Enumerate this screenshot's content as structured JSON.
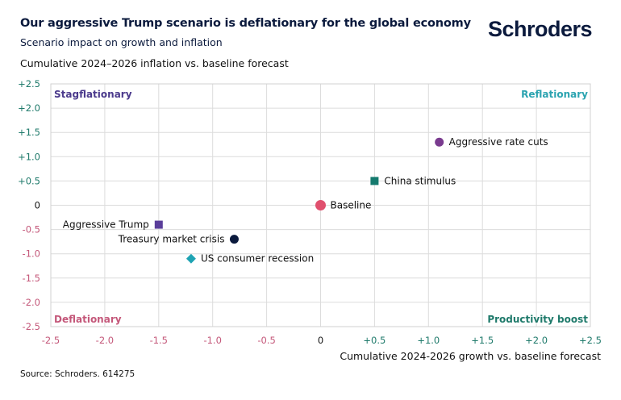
{
  "header": {
    "title": "Our aggressive Trump scenario is deflationary for the global economy",
    "subtitle": "Scenario impact on growth and inflation",
    "logo": "Schroders"
  },
  "footer": {
    "source": "Source: Schroders. 614275"
  },
  "chart_data": {
    "type": "scatter",
    "title": "Our aggressive Trump scenario is deflationary for the global economy",
    "subtitle": "Scenario impact on growth and inflation",
    "xlabel": "Cumulative 2024-2026 growth vs. baseline forecast",
    "ylabel": "Cumulative 2024–2026 inflation vs. baseline forecast",
    "xlim": [
      -2.5,
      2.5
    ],
    "ylim": [
      -2.5,
      2.5
    ],
    "grid": true,
    "x_ticks": [
      {
        "value": -2.5,
        "label": "-2.5"
      },
      {
        "value": -2.0,
        "label": "-2.0"
      },
      {
        "value": -1.5,
        "label": "-1.5"
      },
      {
        "value": -1.0,
        "label": "-1.0"
      },
      {
        "value": -0.5,
        "label": "-0.5"
      },
      {
        "value": 0,
        "label": "0"
      },
      {
        "value": 0.5,
        "label": "+0.5"
      },
      {
        "value": 1.0,
        "label": "+1.0"
      },
      {
        "value": 1.5,
        "label": "+1.5"
      },
      {
        "value": 2.0,
        "label": "+2.0"
      },
      {
        "value": 2.5,
        "label": "+2.5"
      }
    ],
    "y_ticks": [
      {
        "value": 2.5,
        "label": "+2.5"
      },
      {
        "value": 2.0,
        "label": "+2.0"
      },
      {
        "value": 1.5,
        "label": "+1.5"
      },
      {
        "value": 1.0,
        "label": "+1.0"
      },
      {
        "value": 0.5,
        "label": "+0.5"
      },
      {
        "value": 0,
        "label": "0"
      },
      {
        "value": -0.5,
        "label": "-0.5"
      },
      {
        "value": -1.0,
        "label": "-1.0"
      },
      {
        "value": -1.5,
        "label": "-1.5"
      },
      {
        "value": -2.0,
        "label": "-2.0"
      },
      {
        "value": -2.5,
        "label": "-2.5"
      }
    ],
    "tick_colors": {
      "positive": "#1f7a6b",
      "negative": "#c4587a",
      "zero": "#111111"
    },
    "quadrants": [
      {
        "label": "Stagflationary",
        "position": "top-left",
        "color": "#4b3a8c"
      },
      {
        "label": "Reflationary",
        "position": "top-right",
        "color": "#2aa3b0"
      },
      {
        "label": "Deflationary",
        "position": "bottom-left",
        "color": "#c4587a"
      },
      {
        "label": "Productivity boost",
        "position": "bottom-right",
        "color": "#1f7a6b"
      }
    ],
    "points": [
      {
        "name": "Aggressive rate cuts",
        "x": 1.1,
        "y": 1.3,
        "marker": "circle",
        "color": "#7a3b8f",
        "label_side": "right"
      },
      {
        "name": "China stimulus",
        "x": 0.5,
        "y": 0.5,
        "marker": "square",
        "color": "#157a6e",
        "label_side": "right"
      },
      {
        "name": "Baseline",
        "x": 0,
        "y": 0,
        "marker": "circle",
        "color": "#e0506e",
        "label_side": "right"
      },
      {
        "name": "Aggressive Trump",
        "x": -1.5,
        "y": -0.4,
        "marker": "square",
        "color": "#5a3e9a",
        "label_side": "left"
      },
      {
        "name": "Treasury market crisis",
        "x": -0.8,
        "y": -0.7,
        "marker": "circle",
        "color": "#0b1a3d",
        "label_side": "left"
      },
      {
        "name": "US consumer recession",
        "x": -1.2,
        "y": -1.1,
        "marker": "diamond",
        "color": "#1ea3b3",
        "label_side": "right"
      }
    ]
  }
}
